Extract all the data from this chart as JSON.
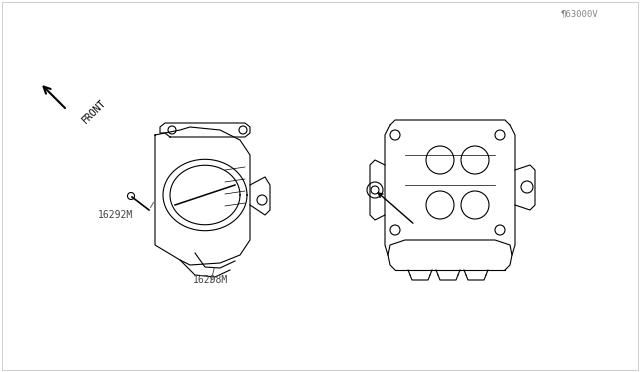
{
  "title": "",
  "background_color": "#ffffff",
  "border_color": "#cccccc",
  "line_color": "#000000",
  "label_color": "#555555",
  "part_label_1": "16298M",
  "part_label_2": "16292M",
  "front_label": "FRONT",
  "watermark": "¶63000V",
  "fig_width": 6.4,
  "fig_height": 3.72,
  "dpi": 100
}
